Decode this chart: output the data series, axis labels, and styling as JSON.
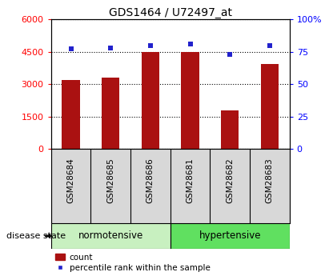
{
  "title": "GDS1464 / U72497_at",
  "categories": [
    "GSM28684",
    "GSM28685",
    "GSM28686",
    "GSM28681",
    "GSM28682",
    "GSM28683"
  ],
  "bar_values": [
    3200,
    3300,
    4500,
    4500,
    1800,
    3950
  ],
  "percentile_values": [
    77,
    78,
    80,
    81,
    73,
    80
  ],
  "bar_color": "#aa1111",
  "dot_color": "#2222cc",
  "ylim_left": [
    0,
    6000
  ],
  "ylim_right": [
    0,
    100
  ],
  "yticks_left": [
    0,
    1500,
    3000,
    4500,
    6000
  ],
  "yticks_right": [
    0,
    25,
    50,
    75,
    100
  ],
  "ytick_labels_right": [
    "0",
    "25",
    "50",
    "75",
    "100%"
  ],
  "group_label": "disease state",
  "legend_count": "count",
  "legend_percentile": "percentile rank within the sample",
  "plot_bg": "#d8d8d8",
  "norm_bg": "#c8f0c0",
  "hyper_bg": "#60e060",
  "title_fontsize": 10,
  "tick_fontsize": 8,
  "bar_width": 0.45
}
